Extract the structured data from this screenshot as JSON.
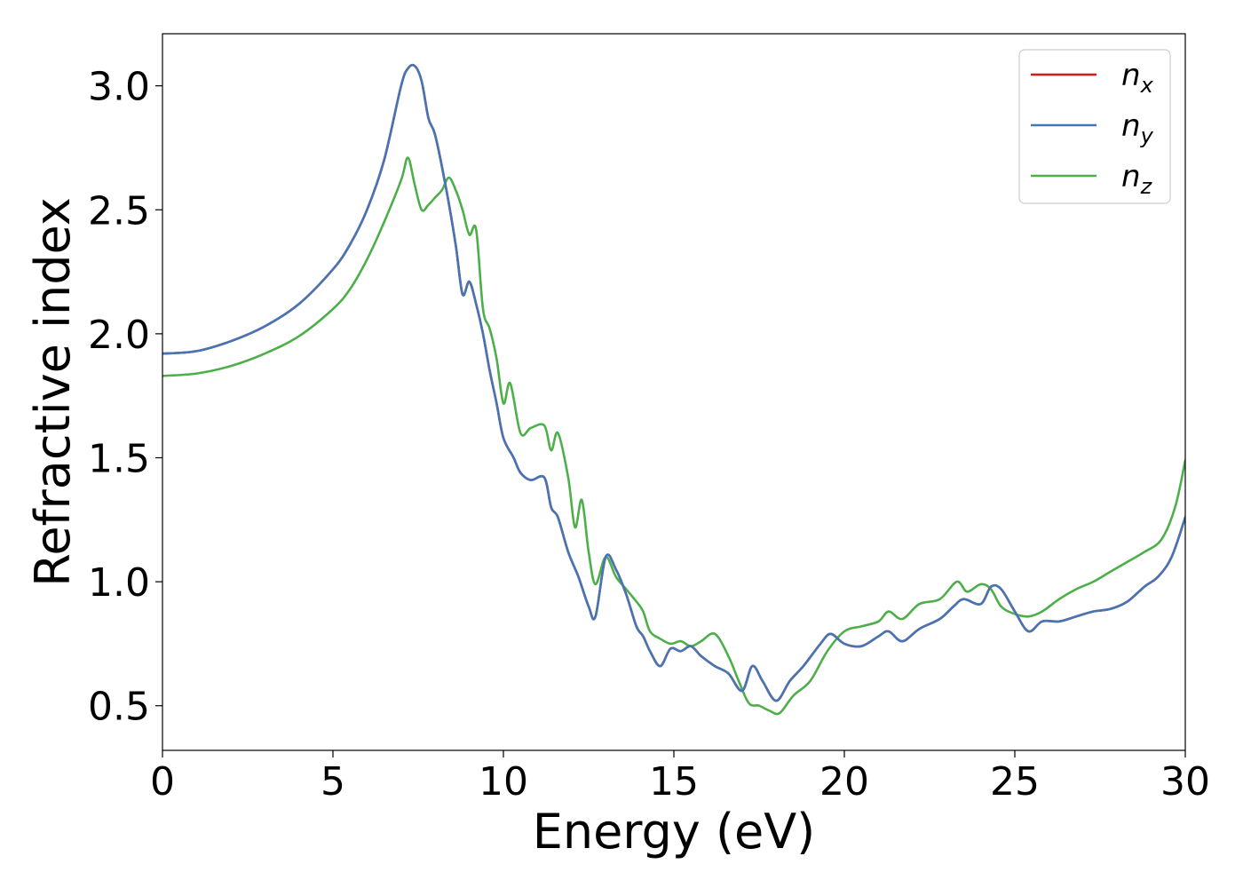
{
  "chart_data": {
    "type": "line",
    "title": "",
    "xlabel": "Energy (eV)",
    "ylabel": "Refractive index",
    "xlim": [
      0,
      30
    ],
    "ylim": [
      0.32,
      3.21
    ],
    "xticks": [
      0,
      5,
      10,
      15,
      20,
      25,
      30
    ],
    "yticks": [
      0.5,
      1.0,
      1.5,
      2.0,
      2.5,
      3.0
    ],
    "xtick_labels": [
      "0",
      "5",
      "10",
      "15",
      "20",
      "25",
      "30"
    ],
    "ytick_labels": [
      "0.5",
      "1.0",
      "1.5",
      "2.0",
      "2.5",
      "3.0"
    ],
    "grid": false,
    "legend_position": "top-right",
    "colors": {
      "n_x": "#d7191c",
      "n_y": "#4575b4",
      "n_z": "#4daf4a"
    },
    "legend": [
      {
        "key": "n_x",
        "base": "n",
        "sub": "x"
      },
      {
        "key": "n_y",
        "base": "n",
        "sub": "y"
      },
      {
        "key": "n_z",
        "base": "n",
        "sub": "z"
      }
    ],
    "series": [
      {
        "name": "n_x",
        "x": [
          0,
          1,
          2,
          3,
          4,
          5,
          5.5,
          6,
          6.5,
          7,
          7.2,
          7.4,
          7.6,
          7.8,
          8,
          8.3,
          8.6,
          8.8,
          9,
          9.2,
          9.4,
          9.6,
          9.8,
          10,
          10.3,
          10.5,
          10.8,
          11.2,
          11.4,
          11.6,
          11.9,
          12.2,
          12.5,
          12.7,
          13,
          13.3,
          13.6,
          13.9,
          14.1,
          14.3,
          14.6,
          14.9,
          15.2,
          15.5,
          15.8,
          16.2,
          16.6,
          17,
          17.3,
          17.6,
          18,
          18.4,
          18.8,
          19.3,
          19.6,
          20,
          20.5,
          21,
          21.3,
          21.7,
          22.2,
          22.8,
          23.2,
          23.5,
          24,
          24.3,
          24.6,
          25,
          25.4,
          25.8,
          26.3,
          26.8,
          27.3,
          27.8,
          28.3,
          28.8,
          29.2,
          29.6,
          30
        ],
        "values": [
          1.92,
          1.93,
          1.97,
          2.03,
          2.12,
          2.26,
          2.36,
          2.5,
          2.7,
          3.0,
          3.07,
          3.08,
          3.02,
          2.87,
          2.8,
          2.6,
          2.36,
          2.16,
          2.21,
          2.12,
          2.0,
          1.85,
          1.72,
          1.58,
          1.5,
          1.44,
          1.41,
          1.42,
          1.3,
          1.26,
          1.12,
          1.02,
          0.9,
          0.86,
          1.1,
          1.05,
          0.95,
          0.82,
          0.78,
          0.72,
          0.66,
          0.73,
          0.72,
          0.74,
          0.7,
          0.66,
          0.63,
          0.56,
          0.66,
          0.6,
          0.52,
          0.6,
          0.66,
          0.75,
          0.79,
          0.75,
          0.74,
          0.78,
          0.8,
          0.76,
          0.81,
          0.85,
          0.9,
          0.93,
          0.91,
          0.98,
          0.97,
          0.88,
          0.8,
          0.84,
          0.84,
          0.86,
          0.88,
          0.89,
          0.92,
          0.98,
          1.02,
          1.1,
          1.26
        ]
      },
      {
        "name": "n_y",
        "x": [
          0,
          1,
          2,
          3,
          4,
          5,
          5.5,
          6,
          6.5,
          7,
          7.2,
          7.4,
          7.6,
          7.8,
          8,
          8.3,
          8.6,
          8.8,
          9,
          9.2,
          9.4,
          9.6,
          9.8,
          10,
          10.3,
          10.5,
          10.8,
          11.2,
          11.4,
          11.6,
          11.9,
          12.2,
          12.5,
          12.7,
          13,
          13.3,
          13.6,
          13.9,
          14.1,
          14.3,
          14.6,
          14.9,
          15.2,
          15.5,
          15.8,
          16.2,
          16.6,
          17,
          17.3,
          17.6,
          18,
          18.4,
          18.8,
          19.3,
          19.6,
          20,
          20.5,
          21,
          21.3,
          21.7,
          22.2,
          22.8,
          23.2,
          23.5,
          24,
          24.3,
          24.6,
          25,
          25.4,
          25.8,
          26.3,
          26.8,
          27.3,
          27.8,
          28.3,
          28.8,
          29.2,
          29.6,
          30
        ],
        "values": [
          1.92,
          1.93,
          1.97,
          2.03,
          2.12,
          2.26,
          2.36,
          2.5,
          2.7,
          3.0,
          3.07,
          3.08,
          3.02,
          2.87,
          2.8,
          2.6,
          2.36,
          2.16,
          2.21,
          2.12,
          2.0,
          1.85,
          1.72,
          1.58,
          1.5,
          1.44,
          1.41,
          1.42,
          1.3,
          1.26,
          1.12,
          1.02,
          0.9,
          0.86,
          1.1,
          1.05,
          0.95,
          0.82,
          0.78,
          0.72,
          0.66,
          0.73,
          0.72,
          0.74,
          0.7,
          0.66,
          0.63,
          0.56,
          0.66,
          0.6,
          0.52,
          0.6,
          0.66,
          0.75,
          0.79,
          0.75,
          0.74,
          0.78,
          0.8,
          0.76,
          0.81,
          0.85,
          0.9,
          0.93,
          0.91,
          0.98,
          0.97,
          0.88,
          0.8,
          0.84,
          0.84,
          0.86,
          0.88,
          0.89,
          0.92,
          0.98,
          1.02,
          1.1,
          1.26
        ]
      },
      {
        "name": "n_z",
        "x": [
          0,
          1,
          2,
          3,
          4,
          5,
          5.5,
          6,
          6.5,
          7,
          7.2,
          7.4,
          7.6,
          7.8,
          8,
          8.2,
          8.4,
          8.6,
          8.8,
          9,
          9.2,
          9.4,
          9.6,
          9.8,
          10,
          10.2,
          10.5,
          10.8,
          11.2,
          11.4,
          11.6,
          11.9,
          12.1,
          12.3,
          12.5,
          12.7,
          13,
          13.3,
          13.6,
          13.9,
          14.1,
          14.3,
          14.6,
          14.9,
          15.2,
          15.5,
          15.8,
          16.2,
          16.6,
          16.9,
          17.2,
          17.5,
          17.8,
          18.1,
          18.5,
          19,
          19.5,
          20,
          20.5,
          21,
          21.3,
          21.7,
          22.2,
          22.8,
          23.3,
          23.6,
          24,
          24.3,
          24.6,
          25,
          25.4,
          25.8,
          26.3,
          26.8,
          27.3,
          27.8,
          28.3,
          28.8,
          29.3,
          29.7,
          30
        ],
        "values": [
          1.83,
          1.84,
          1.87,
          1.92,
          1.99,
          2.1,
          2.18,
          2.3,
          2.45,
          2.62,
          2.71,
          2.6,
          2.5,
          2.52,
          2.55,
          2.58,
          2.63,
          2.58,
          2.5,
          2.4,
          2.42,
          2.1,
          2.02,
          1.9,
          1.72,
          1.8,
          1.6,
          1.62,
          1.63,
          1.53,
          1.6,
          1.42,
          1.22,
          1.33,
          1.12,
          0.99,
          1.1,
          1.02,
          0.97,
          0.92,
          0.88,
          0.8,
          0.77,
          0.75,
          0.76,
          0.74,
          0.76,
          0.79,
          0.7,
          0.6,
          0.51,
          0.5,
          0.48,
          0.47,
          0.54,
          0.6,
          0.72,
          0.8,
          0.82,
          0.84,
          0.88,
          0.85,
          0.91,
          0.93,
          1.0,
          0.96,
          0.99,
          0.97,
          0.9,
          0.87,
          0.86,
          0.88,
          0.93,
          0.97,
          1.0,
          1.04,
          1.08,
          1.12,
          1.17,
          1.3,
          1.49
        ]
      }
    ]
  }
}
